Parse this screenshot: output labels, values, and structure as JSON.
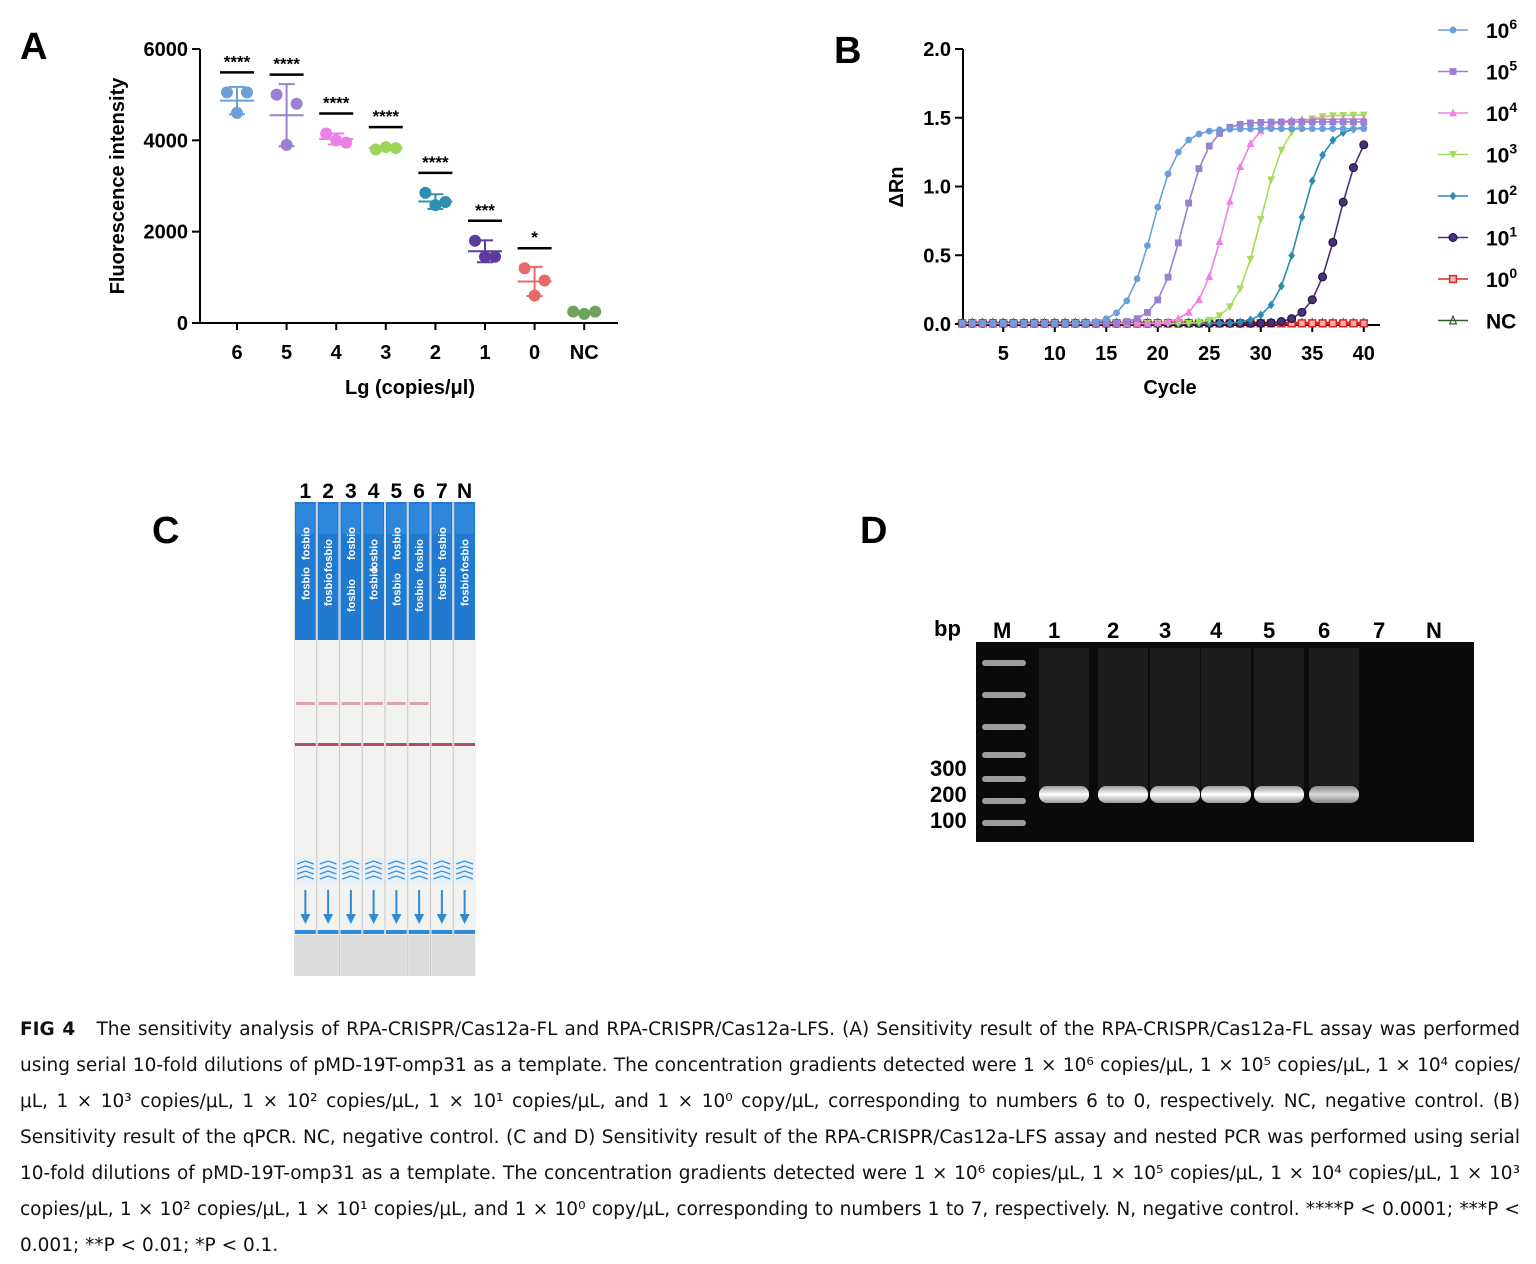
{
  "panels": {
    "a": "A",
    "b": "B",
    "c": "C",
    "d": "D"
  },
  "chart_data": [
    {
      "type": "scatter",
      "panel": "A",
      "ylabel": "Fluorescence intensity",
      "xlabel": "Lg (copies/μl)",
      "categories": [
        "6",
        "5",
        "4",
        "3",
        "2",
        "1",
        "0",
        "NC"
      ],
      "yticks": [
        "0",
        "2000",
        "4000",
        "6000"
      ],
      "ylim": [
        0,
        6000
      ],
      "points": [
        [
          5050,
          5050,
          4600
        ],
        [
          5000,
          4800,
          3900
        ],
        [
          4150,
          3950,
          4000
        ],
        [
          3800,
          3850,
          3830
        ],
        [
          2850,
          2650,
          2580
        ],
        [
          1800,
          1450,
          1450
        ],
        [
          1200,
          930,
          600
        ],
        [
          250,
          200,
          250
        ]
      ],
      "means": [
        4870,
        4550,
        4030,
        3830,
        2660,
        1570,
        910,
        233
      ],
      "sds": [
        300,
        680,
        120,
        30,
        160,
        240,
        320,
        40
      ],
      "significance": [
        "****",
        "****",
        "****",
        "****",
        "****",
        "***",
        "*",
        ""
      ],
      "colors": [
        "#6a9fdc",
        "#9b7fd0",
        "#ec7fe6",
        "#9ed45a",
        "#2e8fb0",
        "#5b3b9c",
        "#e8686b",
        "#6fa35e"
      ]
    },
    {
      "type": "line",
      "panel": "B",
      "ylabel": "ΔRn",
      "xlabel": "Cycle",
      "xticks": [
        "5",
        "10",
        "15",
        "20",
        "25",
        "30",
        "35",
        "40"
      ],
      "yticks": [
        "0.0",
        "0.5",
        "1.0",
        "1.5",
        "2.0"
      ],
      "xlim": [
        1,
        40
      ],
      "ylim": [
        0,
        2.0
      ],
      "series": [
        {
          "name": "10",
          "exp": "6",
          "color": "#6a9fdc",
          "marker": "circle",
          "ct": 19.5,
          "plateau": 1.42
        },
        {
          "name": "10",
          "exp": "5",
          "color": "#9b7fd0",
          "marker": "square",
          "ct": 22.5,
          "plateau": 1.47
        },
        {
          "name": "10",
          "exp": "4",
          "color": "#f07fe6",
          "marker": "triangle",
          "ct": 26.5,
          "plateau": 1.49
        },
        {
          "name": "10",
          "exp": "3",
          "color": "#a6dc5c",
          "marker": "triangle-down",
          "ct": 30.0,
          "plateau": 1.52
        },
        {
          "name": "10",
          "exp": "2",
          "color": "#2b8cb0",
          "marker": "diamond",
          "ct": 33.8,
          "plateau": 1.44
        },
        {
          "name": "10",
          "exp": "1",
          "color": "#4a2f7a",
          "marker": "circle-open",
          "ct": 37.5,
          "plateau": 1.48
        },
        {
          "name": "10",
          "exp": "0",
          "color": "#d62828",
          "marker": "square-open",
          "ct": null,
          "plateau": 0.0
        },
        {
          "name": "NC",
          "exp": "",
          "color": "#2f5e2a",
          "marker": "triangle-open",
          "ct": null,
          "plateau": 0.0
        }
      ]
    }
  ],
  "strips": {
    "lanes": [
      "1",
      "2",
      "3",
      "4",
      "5",
      "6",
      "7",
      "N"
    ],
    "brand": "fosbio",
    "test_line_lanes": 6
  },
  "gel": {
    "bp_label": "bp",
    "lanes": [
      "M",
      "1",
      "2",
      "3",
      "4",
      "5",
      "6",
      "7",
      "N"
    ],
    "markers": [
      "300",
      "200",
      "100"
    ],
    "band_lanes": 6
  },
  "caption": {
    "fig": "FIG 4",
    "intro": "The sensitivity analysis of RPA-CRISPR/Cas12a-FL and RPA-CRISPR/Cas12a-LFS. (A) Sensitivity result of the RPA-CRISPR/Cas12a-FL assay was performed using serial 10-fold dilutions of pMD-19T-omp31 as a template. The concentration gradients detected were",
    "gradient_a": "1 × 10⁶ copies/μL, 1 × 10⁵ copies/μL, 1 × 10⁴ copies/μL, 1 × 10³ copies/μL, 1 × 10² copies/μL, 1 × 10¹ copies/μL, and 1 × 10⁰ copy/μL,",
    "mid_a": "corresponding to numbers 6 to 0, respectively. NC, negative control. (B) Sensitivity result of the qPCR. NC, negative control. (C and D) Sensitivity result of the RPA-CRISPR/Cas12a-LFS assay and nested PCR was performed using serial 10-fold dilutions of pMD-19T-omp31 as a template. The concentration gradients detected were",
    "gradient_b": "1 × 10⁶ copies/μL, 1 × 10⁵ copies/μL, 1 × 10⁴ copies/μL, 1 × 10³ copies/μL, 1 × 10² copies/μL, 1 × 10¹ copies/μL, and 1 × 10⁰ copy/μL,",
    "end": "corresponding to numbers 1 to 7, respectively. N, negative control.",
    "stats": "****P < 0.0001; ***P < 0.001; **P < 0.01; *P < 0.1."
  }
}
